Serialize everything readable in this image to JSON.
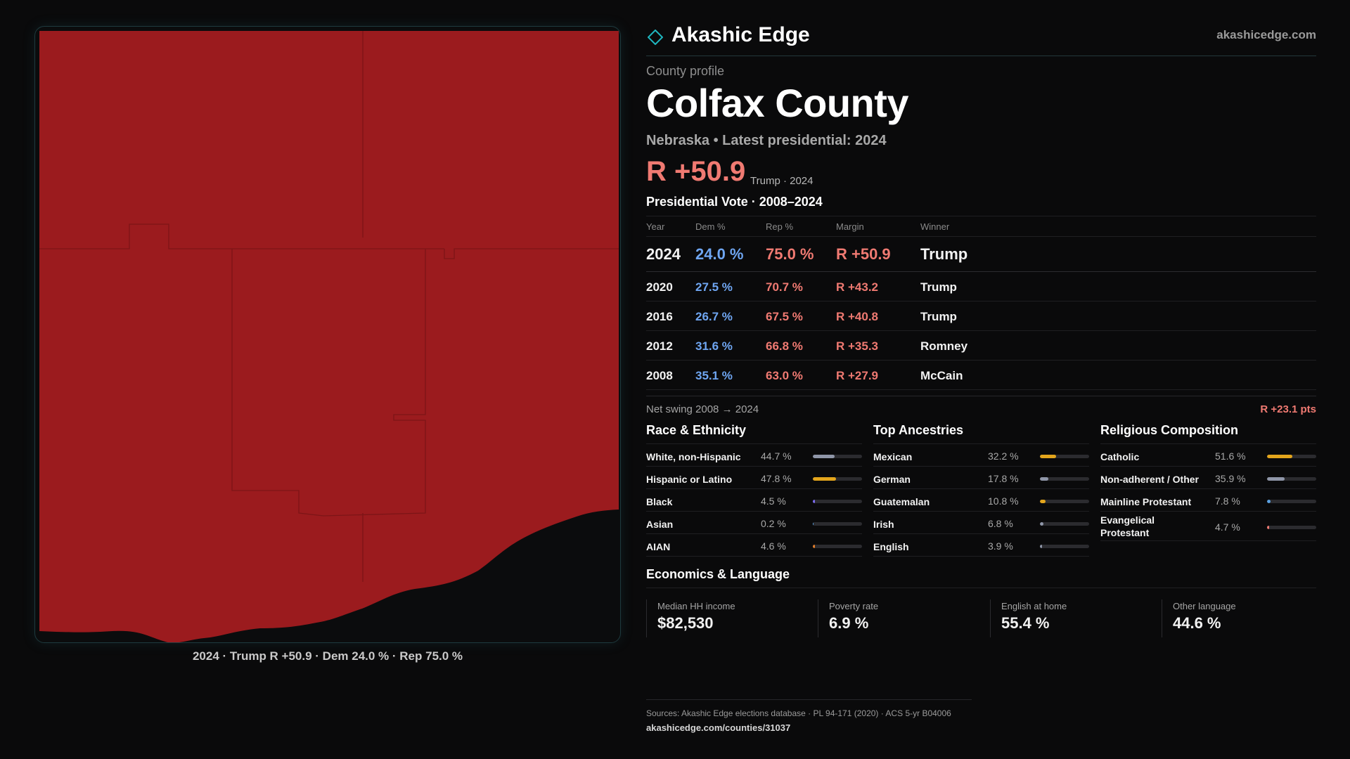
{
  "brand": {
    "name": "Akashic Edge",
    "url": "akashicedge.com"
  },
  "map": {
    "fill_color": "#9b1b1e",
    "caption": "2024 · Trump R +50.9 · Dem 24.0 % · Rep 75.0 %"
  },
  "profile": {
    "eyebrow": "County profile",
    "title": "Colfax County",
    "subtitle": "Nebraska • Latest presidential: 2024",
    "margin": "R +50.9",
    "margin_note": "Trump · 2024"
  },
  "vote_history": {
    "heading": "Presidential Vote · 2008–2024",
    "columns": [
      "Year",
      "Dem %",
      "Rep %",
      "Margin",
      "Winner"
    ],
    "rows": [
      {
        "year": "2024",
        "dem": "24.0 %",
        "rep": "75.0 %",
        "margin": "R +50.9",
        "winner": "Trump"
      },
      {
        "year": "2020",
        "dem": "27.5 %",
        "rep": "70.7 %",
        "margin": "R +43.2",
        "winner": "Trump"
      },
      {
        "year": "2016",
        "dem": "26.7 %",
        "rep": "67.5 %",
        "margin": "R +40.8",
        "winner": "Trump"
      },
      {
        "year": "2012",
        "dem": "31.6 %",
        "rep": "66.8 %",
        "margin": "R +35.3",
        "winner": "Romney"
      },
      {
        "year": "2008",
        "dem": "35.1 %",
        "rep": "63.0 %",
        "margin": "R +27.9",
        "winner": "McCain"
      }
    ],
    "swing_label": "Net swing 2008 → 2024",
    "swing_value": "R +23.1 pts"
  },
  "race": {
    "heading": "Race & Ethnicity",
    "items": [
      {
        "name": "White, non-Hispanic",
        "pct": "44.7 %",
        "level": 44.7,
        "color": "#8f96a8"
      },
      {
        "name": "Hispanic or Latino",
        "pct": "47.8 %",
        "level": 47.8,
        "color": "#e3a51c"
      },
      {
        "name": "Black",
        "pct": "4.5 %",
        "level": 4.5,
        "color": "#7c6cf0"
      },
      {
        "name": "Asian",
        "pct": "0.2 %",
        "level": 0.2,
        "color": "#5aa0e0"
      },
      {
        "name": "AIAN",
        "pct": "4.6 %",
        "level": 4.6,
        "color": "#e07d2a"
      }
    ]
  },
  "ancestry": {
    "heading": "Top Ancestries",
    "items": [
      {
        "name": "Mexican",
        "pct": "32.2 %",
        "level": 32.2,
        "color": "#e3a51c"
      },
      {
        "name": "German",
        "pct": "17.8 %",
        "level": 17.8,
        "color": "#8f96a8"
      },
      {
        "name": "Guatemalan",
        "pct": "10.8 %",
        "level": 10.8,
        "color": "#e3a51c"
      },
      {
        "name": "Irish",
        "pct": "6.8 %",
        "level": 6.8,
        "color": "#8f96a8"
      },
      {
        "name": "English",
        "pct": "3.9 %",
        "level": 3.9,
        "color": "#8f96a8"
      }
    ]
  },
  "religion": {
    "heading": "Religious Composition",
    "items": [
      {
        "name": "Catholic",
        "pct": "51.6 %",
        "level": 51.6,
        "color": "#e3a51c"
      },
      {
        "name": "Non-adherent / Other",
        "pct": "35.9 %",
        "level": 35.9,
        "color": "#8f96a8"
      },
      {
        "name": "Mainline Protestant",
        "pct": "7.8 %",
        "level": 7.8,
        "color": "#5aa0e0"
      },
      {
        "name": "Evangelical Protestant",
        "pct": "4.7 %",
        "level": 4.7,
        "color": "#f07a72"
      }
    ]
  },
  "economics": {
    "heading": "Economics & Language",
    "cards": [
      {
        "label": "Median HH income",
        "value": "$82,530"
      },
      {
        "label": "Poverty rate",
        "value": "6.9 %"
      },
      {
        "label": "English at home",
        "value": "55.4 %"
      },
      {
        "label": "Other language",
        "value": "44.6 %"
      }
    ]
  },
  "footer": {
    "sources": "Sources: Akashic Edge elections database · PL 94-171 (2020) · ACS 5-yr B04006",
    "url": "akashicedge.com/counties/31037"
  }
}
